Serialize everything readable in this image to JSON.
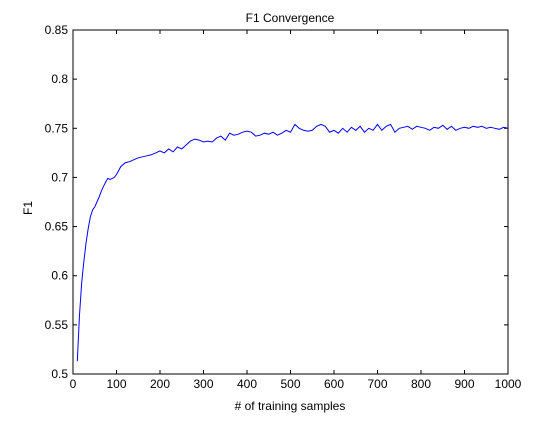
{
  "chart_data": {
    "type": "line",
    "title": "F1 Convergence",
    "xlabel": "# of training samples",
    "ylabel": "F1",
    "xlim": [
      0,
      1000
    ],
    "ylim": [
      0.5,
      0.85
    ],
    "xticks": [
      0,
      100,
      200,
      300,
      400,
      500,
      600,
      700,
      800,
      900,
      1000
    ],
    "yticks": [
      0.5,
      0.55,
      0.6,
      0.65,
      0.7,
      0.75,
      0.8,
      0.85
    ],
    "xtick_labels": [
      "0",
      "100",
      "200",
      "300",
      "400",
      "500",
      "600",
      "700",
      "800",
      "900",
      "1000"
    ],
    "ytick_labels": [
      "0.5",
      "0.55",
      "0.6",
      "0.65",
      "0.7",
      "0.75",
      "0.8",
      "0.85"
    ],
    "grid": false,
    "line_color": "#0000ff",
    "series": [
      {
        "x": [
          10,
          15,
          20,
          25,
          30,
          35,
          40,
          45,
          50,
          55,
          60,
          65,
          70,
          75,
          80,
          85,
          90,
          95,
          100,
          110,
          120,
          130,
          140,
          150,
          160,
          170,
          180,
          190,
          200,
          210,
          220,
          230,
          240,
          250,
          260,
          270,
          280,
          290,
          300,
          310,
          320,
          330,
          340,
          350,
          360,
          370,
          380,
          390,
          400,
          410,
          420,
          430,
          440,
          450,
          460,
          470,
          480,
          490,
          500,
          510,
          520,
          530,
          540,
          550,
          560,
          570,
          580,
          590,
          600,
          610,
          620,
          630,
          640,
          650,
          660,
          670,
          680,
          690,
          700,
          710,
          720,
          730,
          740,
          750,
          760,
          770,
          780,
          790,
          800,
          810,
          820,
          830,
          840,
          850,
          860,
          870,
          880,
          890,
          900,
          910,
          920,
          930,
          940,
          950,
          960,
          970,
          980,
          990,
          1000
        ],
        "values": [
          0.513,
          0.56,
          0.593,
          0.615,
          0.633,
          0.648,
          0.66,
          0.667,
          0.67,
          0.675,
          0.68,
          0.686,
          0.691,
          0.695,
          0.699,
          0.698,
          0.699,
          0.7,
          0.703,
          0.711,
          0.715,
          0.716,
          0.718,
          0.72,
          0.721,
          0.722,
          0.723,
          0.725,
          0.727,
          0.725,
          0.729,
          0.726,
          0.731,
          0.729,
          0.733,
          0.737,
          0.739,
          0.738,
          0.736,
          0.737,
          0.736,
          0.74,
          0.742,
          0.738,
          0.745,
          0.743,
          0.744,
          0.746,
          0.747,
          0.746,
          0.742,
          0.743,
          0.745,
          0.744,
          0.746,
          0.743,
          0.745,
          0.748,
          0.746,
          0.754,
          0.75,
          0.748,
          0.747,
          0.748,
          0.752,
          0.754,
          0.752,
          0.746,
          0.748,
          0.745,
          0.75,
          0.746,
          0.751,
          0.748,
          0.752,
          0.746,
          0.75,
          0.748,
          0.754,
          0.748,
          0.752,
          0.754,
          0.746,
          0.75,
          0.751,
          0.752,
          0.749,
          0.752,
          0.751,
          0.75,
          0.748,
          0.751,
          0.75,
          0.753,
          0.749,
          0.752,
          0.748,
          0.75,
          0.751,
          0.75,
          0.752,
          0.751,
          0.752,
          0.75,
          0.751,
          0.75,
          0.749,
          0.751,
          0.75
        ]
      }
    ]
  }
}
